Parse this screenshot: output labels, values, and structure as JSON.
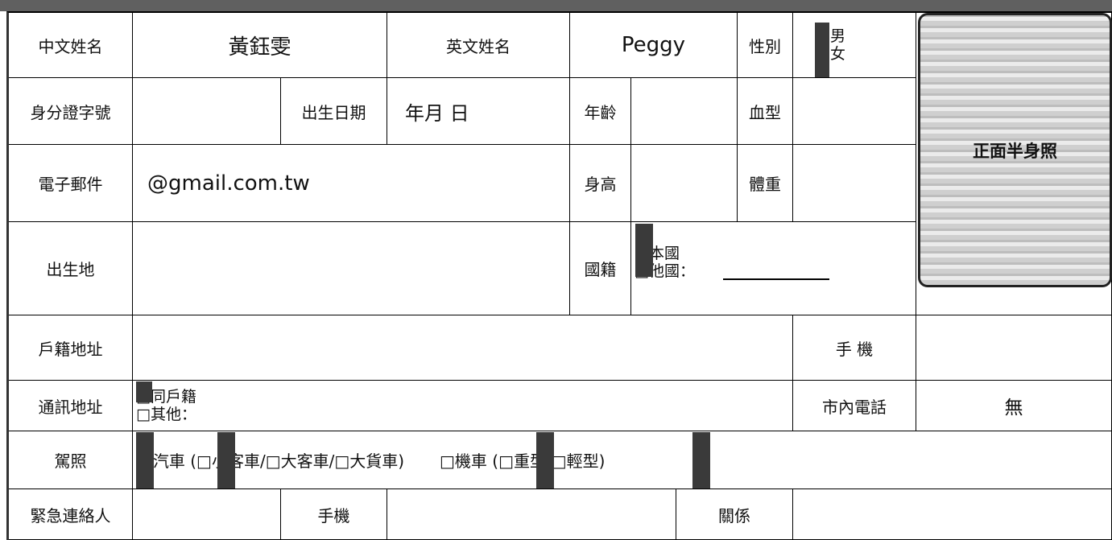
{
  "table": {
    "rows": [
      [
        "中文姓名",
        "黃鈺雯",
        "英文姓名",
        "Peggy",
        "性別"
      ],
      [
        "身分證字號",
        "出生日期",
        "年月 日",
        "年齡",
        "血型"
      ],
      [
        "電子郵件",
        "@gmail.com.tw",
        "身高",
        "體重"
      ],
      [
        "出生地",
        "國籍"
      ],
      [
        "戶籍地址",
        "手 機"
      ],
      [
        "通訊地址",
        "市內電話",
        "無"
      ],
      [
        "駕照",
        "□汽車 (□小客車/□大客車/□大貨車)",
        "□機車 (□重型/□輕型)"
      ],
      [
        "緊急連絡人",
        "手機",
        "關係"
      ]
    ],
    "gender": [
      "□男",
      "□女"
    ],
    "nationality": [
      "□本國",
      "□他國："
    ],
    "mailing": [
      "□同戶籍",
      "□其他："
    ],
    "photo": "正面半身照"
  }
}
